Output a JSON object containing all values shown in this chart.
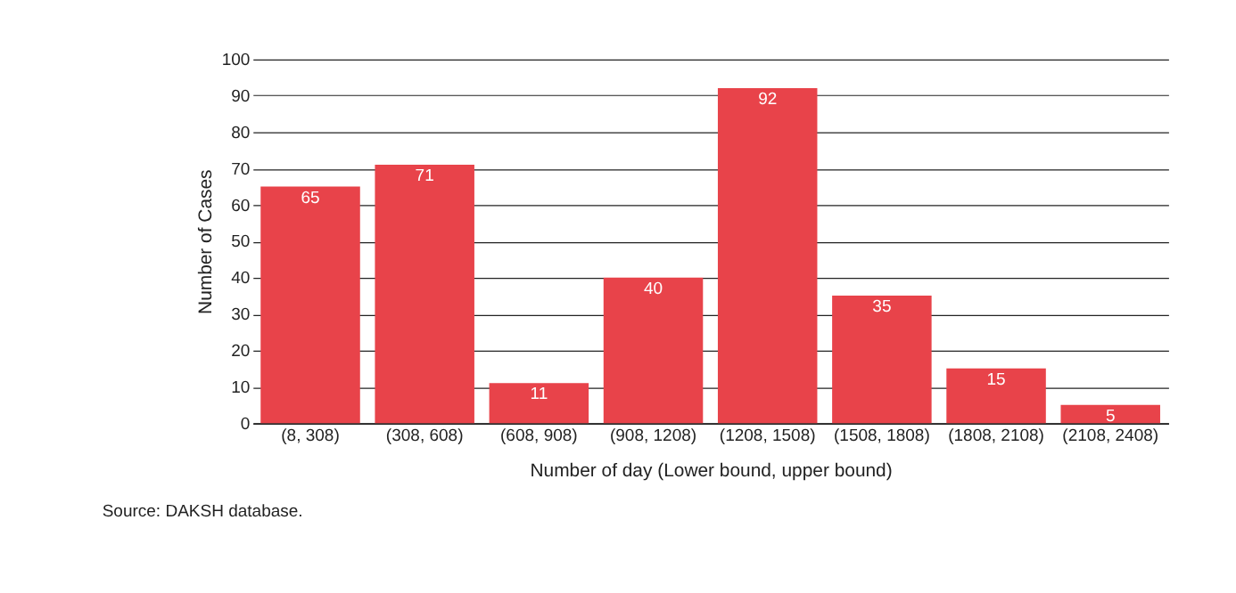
{
  "chart_data": {
    "type": "bar",
    "xlabel": "Number of day (Lower bound, upper bound)",
    "ylabel": "Number of Cases",
    "categories": [
      "(8, 308)",
      "(308, 608)",
      "(608, 908)",
      "(908, 1208)",
      "(1208, 1508)",
      "(1508, 1808)",
      "(1808, 2108)",
      "(2108, 2408)"
    ],
    "values": [
      65,
      71,
      11,
      40,
      92,
      35,
      15,
      5
    ],
    "color": "#e8434a",
    "ylim": [
      0,
      100
    ],
    "yticks": [
      0,
      10,
      20,
      30,
      40,
      50,
      60,
      70,
      80,
      90,
      100
    ],
    "grid": "y",
    "data_labels": true,
    "annotations": [
      "Source: DAKSH database."
    ]
  }
}
